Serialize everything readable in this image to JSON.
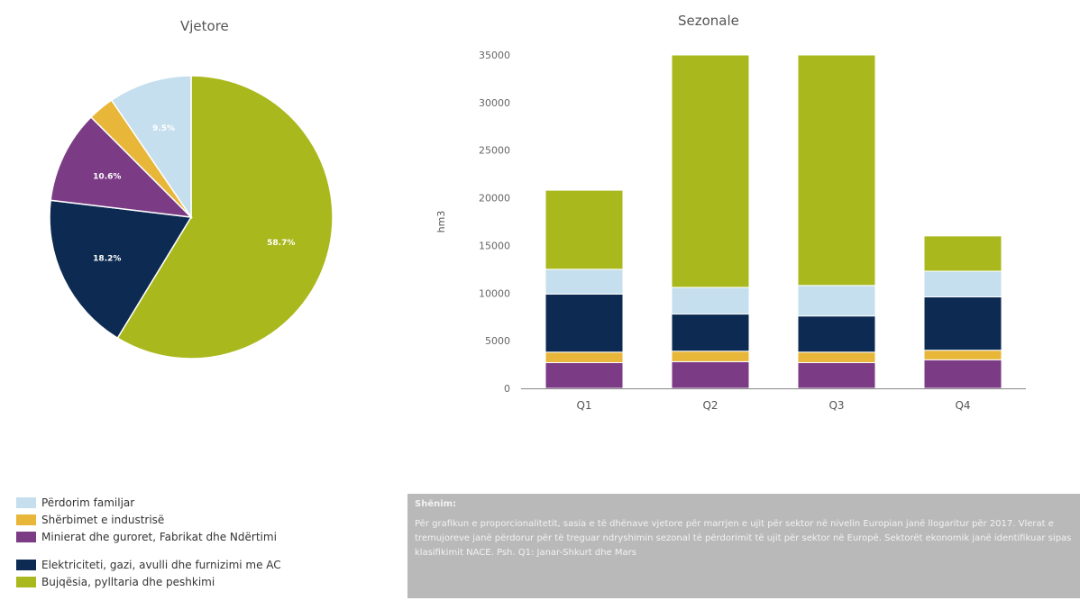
{
  "chart_data": [
    {
      "type": "pie",
      "title": "Vjetore",
      "slices": [
        {
          "name": "Bujqësia, pylltaria dhe peshkimi",
          "value": 58.7,
          "label": "58.7%",
          "color": "#a9b81c"
        },
        {
          "name": "Elektriciteti, gazi, avulli dhe furnizimi me AC",
          "value": 18.2,
          "label": "18.2%",
          "color": "#0d2b52"
        },
        {
          "name": "Minierat dhe guroret, Fabrikat dhe Ndërtimi",
          "value": 10.6,
          "label": "10.6%",
          "color": "#7b3b85"
        },
        {
          "name": "Shërbimet e industrisë",
          "value": 3.0,
          "label": "",
          "color": "#e8b638"
        },
        {
          "name": "Përdorim familjar",
          "value": 9.5,
          "label": "9.5%",
          "color": "#c5dfee"
        }
      ]
    },
    {
      "type": "bar",
      "stacked": true,
      "title": "Sezonale",
      "ylabel": "hm3",
      "categories": [
        "Q1",
        "Q2",
        "Q3",
        "Q4"
      ],
      "ylim": [
        0,
        35000
      ],
      "yticks": [
        "0",
        "5000",
        "10000",
        "15000",
        "20000",
        "25000",
        "30000",
        "35000"
      ],
      "series": [
        {
          "name": "Minierat dhe guroret, Fabrikat dhe Ndërtimi",
          "color": "#7b3b85",
          "values": [
            2700,
            2800,
            2700,
            3000
          ]
        },
        {
          "name": "Shërbimet e industrisë",
          "color": "#e8b638",
          "values": [
            1100,
            1100,
            1100,
            1000
          ]
        },
        {
          "name": "Elektriciteti, gazi, avulli dhe furnizimi me AC",
          "color": "#0d2b52",
          "values": [
            6100,
            3900,
            3800,
            5600
          ]
        },
        {
          "name": "Përdorim familjar",
          "color": "#c5dfee",
          "values": [
            2600,
            2800,
            3200,
            2700
          ]
        },
        {
          "name": "Bujqësia, pylltaria dhe peshkimi",
          "color": "#a9b81c",
          "values": [
            8300,
            24400,
            24200,
            3700
          ]
        }
      ]
    }
  ],
  "legend": {
    "items": [
      {
        "label": "Përdorim familjar",
        "color": "#c5dfee"
      },
      {
        "label": "Shërbimet e industrisë",
        "color": "#e8b638"
      },
      {
        "label": "Minierat dhe guroret, Fabrikat dhe Ndërtimi",
        "color": "#7b3b85"
      },
      {
        "label": "Elektriciteti, gazi, avulli dhe furnizimi me AC",
        "color": "#0d2b52"
      },
      {
        "label": "Bujqësia, pylltaria dhe peshkimi",
        "color": "#a9b81c"
      }
    ]
  },
  "note": {
    "title": "Shënim:",
    "text": "Për grafikun e proporcionalitetit, sasia e të dhënave vjetore për marrjen e ujit për sektor në nivelin Europian janë llogaritur për 2017. Vlerat e tremujoreve janë përdorur për të treguar ndryshimin sezonal të përdorimit të ujit për sektor në Europë. Sektorët ekonomik janë identifikuar sipas klasifikimit NACE. Psh. Q1: Janar-Shkurt dhe Mars"
  }
}
